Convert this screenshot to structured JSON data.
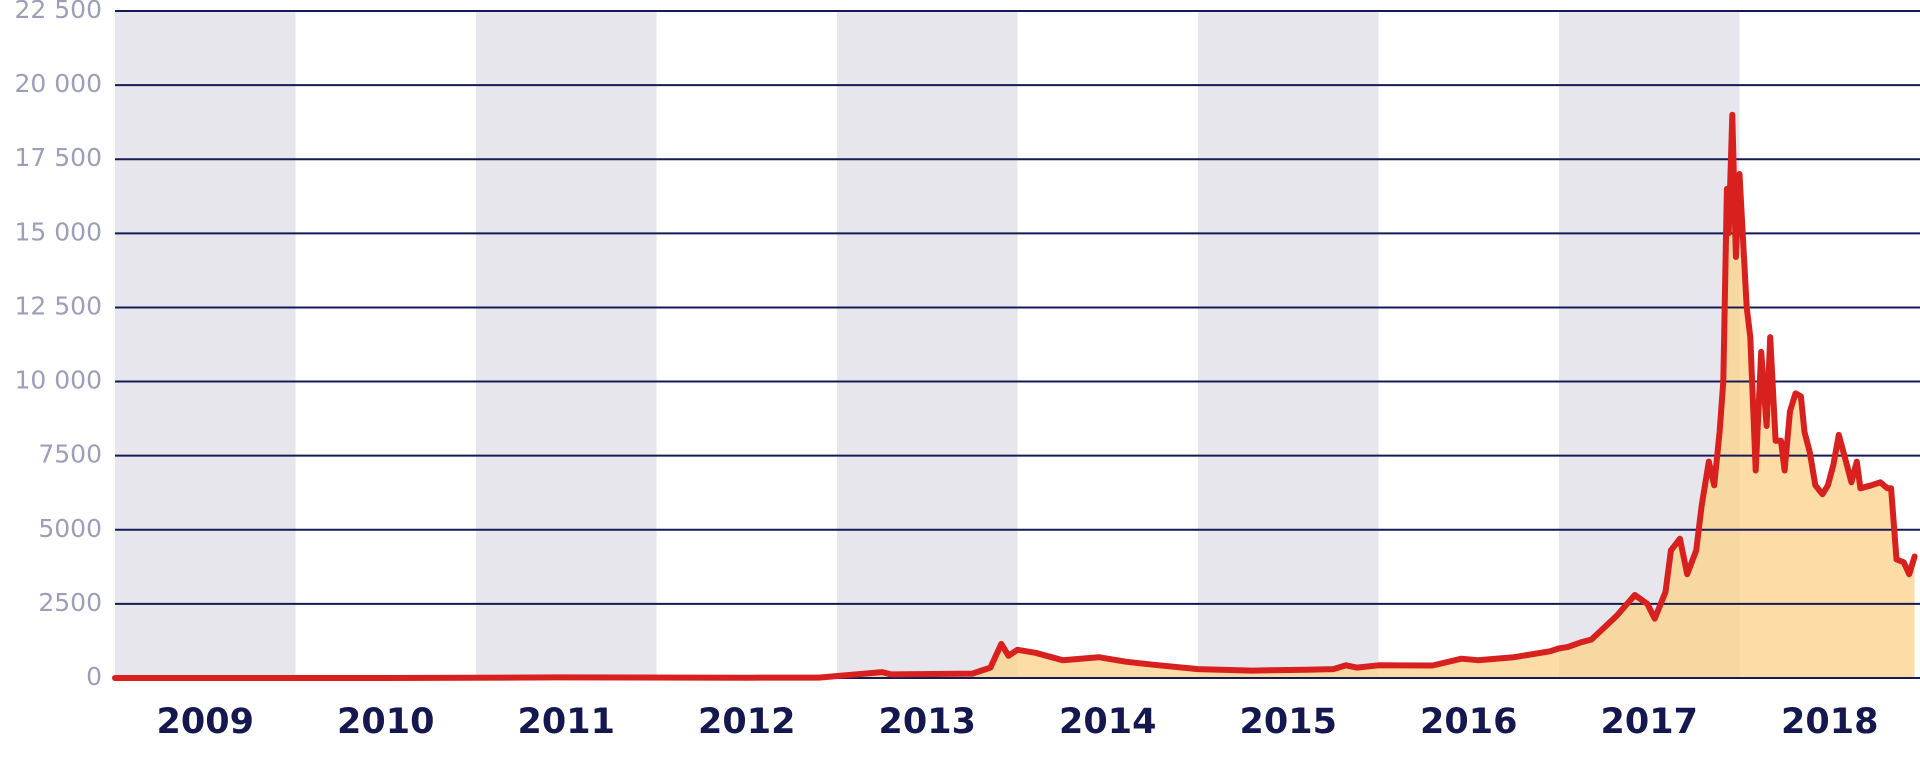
{
  "chart_data": {
    "type": "area",
    "x": [
      2009.0,
      2010.5,
      2011.45,
      2012.5,
      2012.9,
      2013.25,
      2013.3,
      2013.75,
      2013.85,
      2013.91,
      2013.95,
      2014.0,
      2014.1,
      2014.25,
      2014.45,
      2014.6,
      2014.75,
      2015.0,
      2015.3,
      2015.6,
      2015.75,
      2015.82,
      2015.88,
      2016.0,
      2016.3,
      2016.46,
      2016.55,
      2016.75,
      2016.95,
      2017.0,
      2017.05,
      2017.12,
      2017.18,
      2017.32,
      2017.42,
      2017.49,
      2017.53,
      2017.59,
      2017.62,
      2017.67,
      2017.71,
      2017.76,
      2017.79,
      2017.83,
      2017.86,
      2017.89,
      2017.91,
      2017.93,
      2017.94,
      2017.96,
      2017.98,
      2018.0,
      2018.04,
      2018.06,
      2018.09,
      2018.12,
      2018.15,
      2018.17,
      2018.2,
      2018.23,
      2018.25,
      2018.28,
      2018.31,
      2018.34,
      2018.36,
      2018.39,
      2018.42,
      2018.46,
      2018.49,
      2018.52,
      2018.55,
      2018.59,
      2018.62,
      2018.65,
      2018.67,
      2018.73,
      2018.78,
      2018.82,
      2018.84,
      2018.87,
      2018.91,
      2018.94,
      2018.97
    ],
    "values": [
      0,
      0,
      20,
      10,
      13,
      200,
      120,
      150,
      350,
      1150,
      750,
      950,
      850,
      600,
      700,
      550,
      450,
      300,
      250,
      280,
      300,
      430,
      350,
      430,
      420,
      650,
      600,
      700,
      900,
      1000,
      1050,
      1200,
      1300,
      2100,
      2800,
      2500,
      2000,
      2900,
      4300,
      4700,
      3500,
      4300,
      5800,
      7300,
      6500,
      8300,
      10000,
      16500,
      15000,
      19000,
      14200,
      17000,
      12500,
      11500,
      7000,
      11000,
      8500,
      11500,
      8000,
      8000,
      7000,
      9000,
      9600,
      9500,
      8300,
      7600,
      6500,
      6200,
      6500,
      7200,
      8200,
      7300,
      6600,
      7300,
      6400,
      6500,
      6600,
      6400,
      6400,
      4000,
      3900,
      3500,
      4100
    ],
    "xlim": [
      2009,
      2019
    ],
    "xticks": [
      2009,
      2010,
      2011,
      2012,
      2013,
      2014,
      2015,
      2016,
      2017,
      2018
    ],
    "ylim": [
      0,
      22500
    ],
    "yticks": [
      0,
      2500,
      5000,
      7500,
      {
        "value": 10000,
        "label": "10 000"
      },
      {
        "value": 12500,
        "label": "12 500"
      },
      {
        "value": 15000,
        "label": "15 000"
      },
      {
        "value": 17500,
        "label": "17 500"
      },
      {
        "value": 20000,
        "label": "20 000"
      },
      {
        "value": 22500,
        "label": "22 500"
      }
    ],
    "grid": true,
    "line_color": "#d8201f",
    "fill_color": "#fcd48f",
    "band_color": "#e6e6ec",
    "grid_color": "#161a56"
  }
}
